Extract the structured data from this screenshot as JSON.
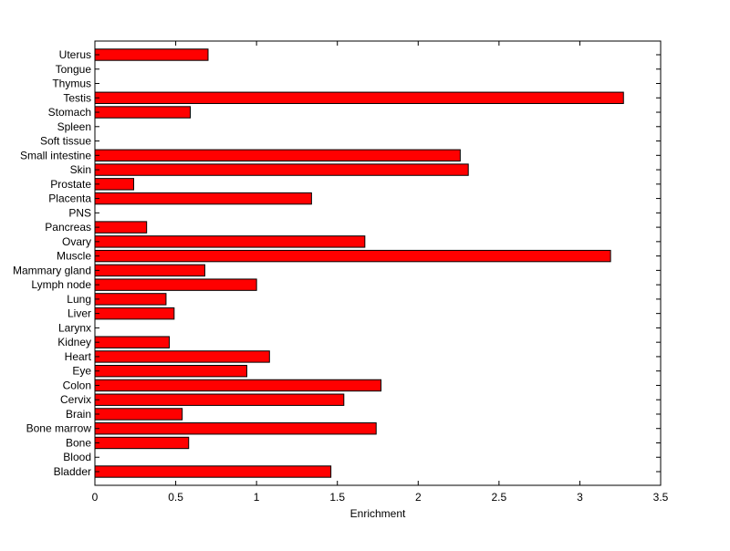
{
  "chart_data": {
    "type": "bar",
    "orientation": "horizontal",
    "xlabel": "Enrichment",
    "ylabel": "",
    "title": "",
    "xlim": [
      0,
      3.5
    ],
    "x_ticks": [
      0,
      0.5,
      1,
      1.5,
      2,
      2.5,
      3,
      3.5
    ],
    "x_tick_labels": [
      "0",
      "0.5",
      "1",
      "1.5",
      "2",
      "2.5",
      "3",
      "3.5"
    ],
    "grid": false,
    "bar_color": "#ff0000",
    "categories": [
      "Bladder",
      "Blood",
      "Bone",
      "Bone marrow",
      "Brain",
      "Cervix",
      "Colon",
      "Eye",
      "Heart",
      "Kidney",
      "Larynx",
      "Liver",
      "Lung",
      "Lymph node",
      "Mammary gland",
      "Muscle",
      "Ovary",
      "Pancreas",
      "PNS",
      "Placenta",
      "Prostate",
      "Skin",
      "Small intestine",
      "Soft tissue",
      "Spleen",
      "Stomach",
      "Testis",
      "Thymus",
      "Tongue",
      "Uterus"
    ],
    "values": [
      1.46,
      0,
      0.58,
      1.74,
      0.54,
      1.54,
      1.77,
      0.94,
      1.08,
      0.46,
      0,
      0.49,
      0.44,
      1.0,
      0.68,
      3.19,
      1.67,
      0.32,
      0,
      1.34,
      0.24,
      2.31,
      2.26,
      0,
      0,
      0.59,
      3.27,
      0,
      0,
      0.7
    ]
  }
}
